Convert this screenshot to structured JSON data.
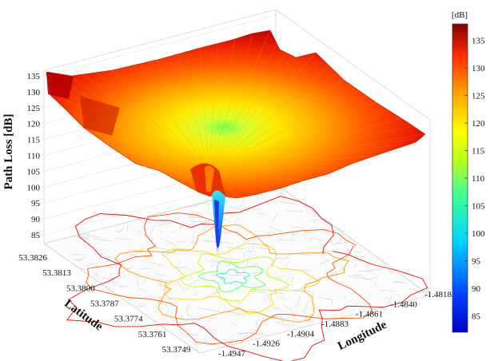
{
  "chart_data": {
    "type": "surface3d",
    "z_axis": {
      "label": "Path Loss [dB]",
      "ticks": [
        "85",
        "90",
        "95",
        "100",
        "105",
        "110",
        "115",
        "120",
        "125",
        "130",
        "135"
      ],
      "range": [
        82,
        138
      ]
    },
    "latitude_axis": {
      "label": "Latitude",
      "ticks": [
        "53.3826",
        "53.3813",
        "53.3800",
        "53.3787",
        "53.3774",
        "53.3761",
        "53.3749"
      ]
    },
    "longitude_axis": {
      "label": "Longitude",
      "ticks": [
        "-1.4947",
        "-1.4926",
        "-1.4904",
        "-1.4883",
        "-1.4861",
        "-1.4840",
        "-1.4818"
      ]
    },
    "colorbar": {
      "unit": "[dB]",
      "ticks": [
        "85",
        "90",
        "95",
        "100",
        "105",
        "110",
        "115",
        "120",
        "125",
        "130",
        "135"
      ],
      "range": [
        82,
        138
      ],
      "colormap": "jet"
    },
    "surface": {
      "description_values": {
        "minimum_at_transmitter_db": 87,
        "center_plateau_db": 112,
        "edge_db": 132
      }
    },
    "grid": true
  }
}
